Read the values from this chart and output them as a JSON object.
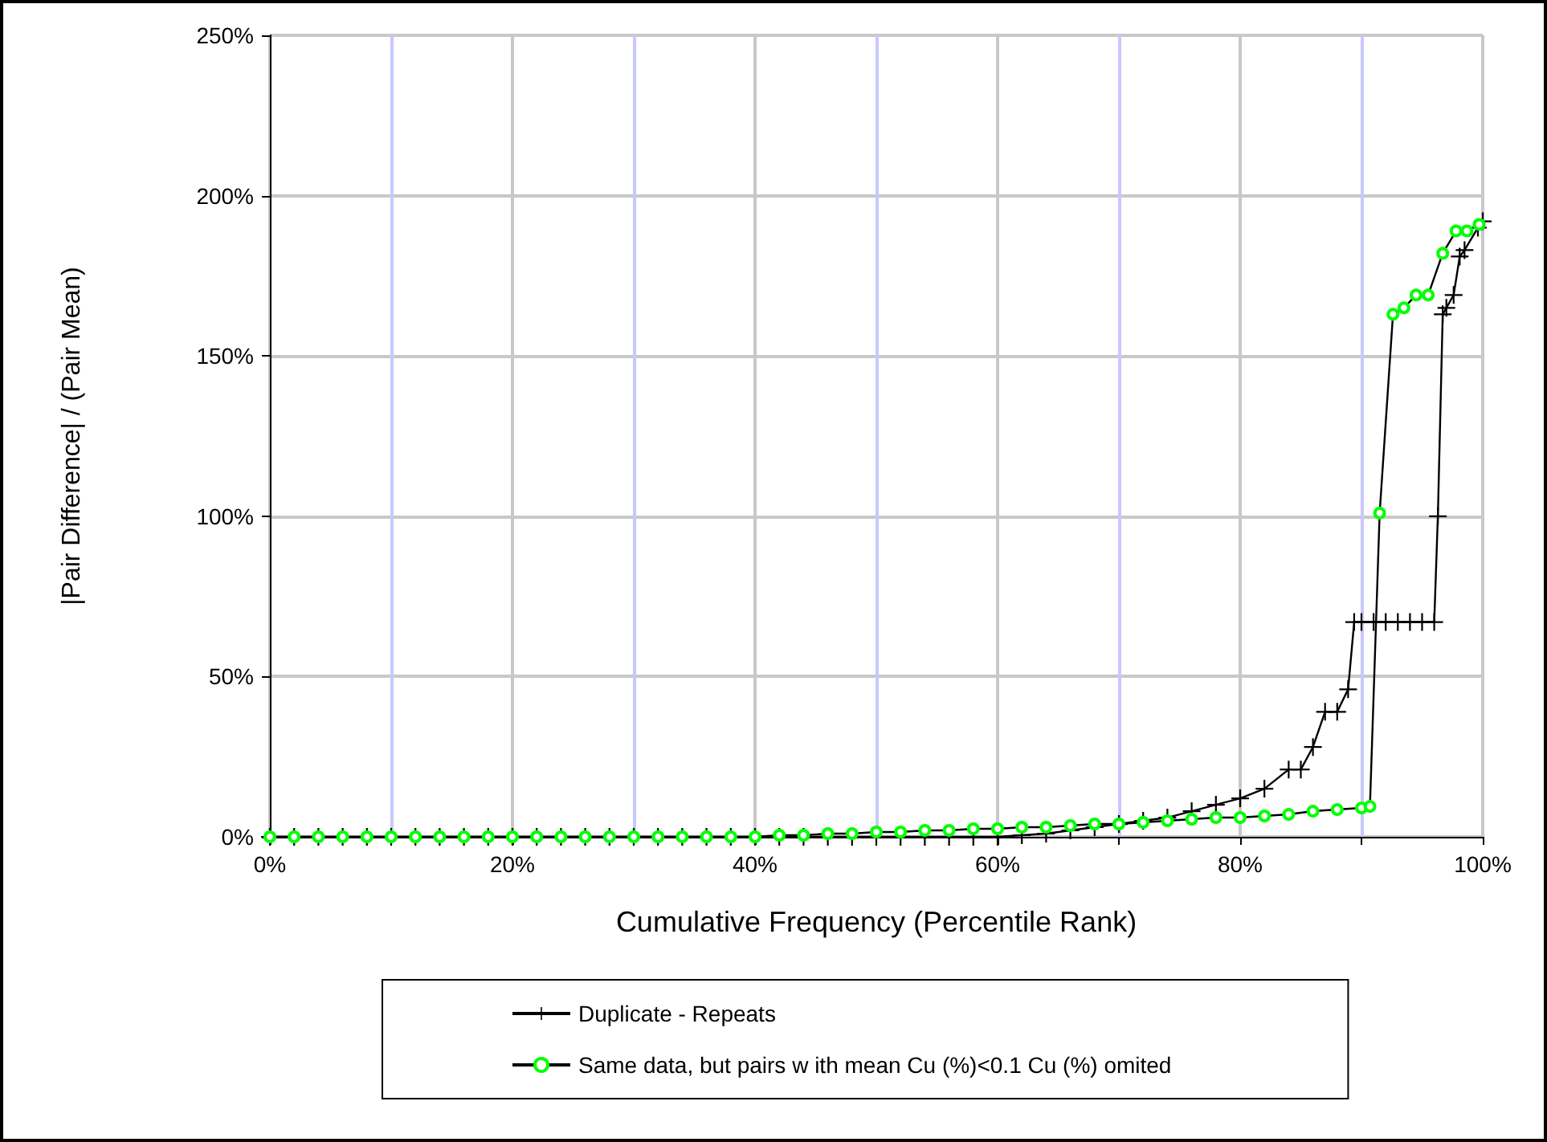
{
  "chart_data": {
    "type": "line",
    "xlabel": "Cumulative Frequency (Percentile Rank)",
    "ylabel": "|Pair Difference| / (Pair Mean)",
    "xlim": [
      0,
      100
    ],
    "xticks": [
      {
        "value": 0,
        "label": "0%"
      },
      {
        "value": 10,
        "label": null
      },
      {
        "value": 20,
        "label": "20%"
      },
      {
        "value": 30,
        "label": null
      },
      {
        "value": 40,
        "label": "40%"
      },
      {
        "value": 50,
        "label": null
      },
      {
        "value": 60,
        "label": "60%"
      },
      {
        "value": 70,
        "label": null
      },
      {
        "value": 80,
        "label": "80%"
      },
      {
        "value": 90,
        "label": null
      },
      {
        "value": 100,
        "label": "100%"
      }
    ],
    "ylim": [
      0,
      250
    ],
    "yticks": [
      {
        "value": 0,
        "label": "0%"
      },
      {
        "value": 50,
        "label": "50%"
      },
      {
        "value": 100,
        "label": "100%"
      },
      {
        "value": 150,
        "label": "150%"
      },
      {
        "value": 200,
        "label": "200%"
      },
      {
        "value": 250,
        "label": "250%"
      }
    ],
    "grid": true,
    "legend": "bottom",
    "series": [
      {
        "name": "Duplicate - Repeats",
        "color": "#000000",
        "marker": "cross",
        "x": [
          0,
          2,
          4,
          6,
          8,
          10,
          12,
          14,
          16,
          18,
          20,
          22,
          24,
          26,
          28,
          30,
          32,
          34,
          36,
          38,
          40,
          42,
          44,
          46,
          48,
          50,
          52,
          54,
          56,
          58,
          60,
          62,
          64,
          66,
          68,
          70,
          72,
          74,
          76,
          78,
          80,
          82,
          84,
          85,
          86,
          87,
          88,
          88.9,
          89.4,
          90,
          91,
          92,
          93,
          94,
          95,
          96,
          96.3,
          96.7,
          97,
          97.6,
          98.1,
          98.5,
          99.6,
          100
        ],
        "values": [
          0,
          0,
          0,
          0,
          0,
          0,
          0,
          0,
          0,
          0,
          0,
          0,
          0,
          0,
          0,
          0,
          0,
          0,
          0,
          0,
          0,
          0,
          0,
          0,
          0,
          0,
          0,
          0,
          0,
          0,
          0,
          0.5,
          1,
          2,
          3,
          4,
          5,
          6,
          8,
          10,
          12,
          15,
          21,
          21,
          28,
          39,
          39,
          46,
          67,
          67,
          67,
          67,
          67,
          67,
          67,
          67,
          100,
          163,
          165,
          169,
          181,
          183,
          190,
          192
        ]
      },
      {
        "name": "Same data, but pairs w ith mean Cu (%)<0.1 Cu (%) omited",
        "color": "#00ff00",
        "marker": "circle",
        "x": [
          0,
          2,
          4,
          6,
          8,
          10,
          12,
          14,
          16,
          18,
          20,
          22,
          24,
          26,
          28,
          30,
          32,
          34,
          36,
          38,
          40,
          42,
          44,
          46,
          48,
          50,
          52,
          54,
          56,
          58,
          60,
          62,
          64,
          66,
          68,
          70,
          72,
          74,
          76,
          78,
          80,
          82,
          84,
          86,
          88,
          90,
          90.7,
          91.5,
          92.6,
          93.5,
          94.5,
          95.5,
          96.7,
          97.8,
          98.7,
          99.7
        ],
        "values": [
          0,
          0,
          0,
          0,
          0,
          0,
          0,
          0,
          0,
          0,
          0,
          0,
          0,
          0,
          0,
          0,
          0,
          0,
          0,
          0,
          0,
          0.5,
          0.5,
          1,
          1,
          1.5,
          1.5,
          2,
          2,
          2.5,
          2.5,
          3,
          3,
          3.5,
          4,
          4,
          4.5,
          5,
          5.5,
          6,
          6,
          6.5,
          7,
          8,
          8.5,
          9,
          9.5,
          101,
          163,
          165,
          169,
          169,
          182,
          189,
          189,
          191
        ]
      }
    ]
  }
}
